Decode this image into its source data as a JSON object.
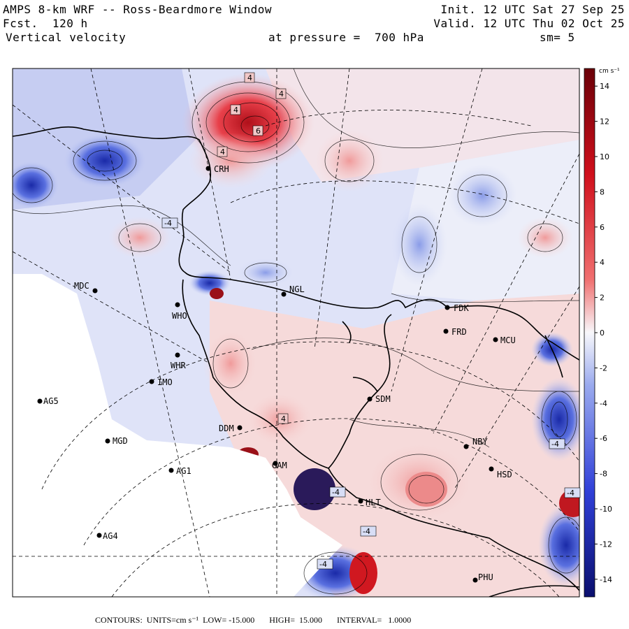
{
  "header": {
    "model": "AMPS 8-km WRF -- Ross-Beardmore Window",
    "forecast": "Fcst.  120 h",
    "field": "Vertical velocity",
    "init": "Init. 12 UTC Sat 27 Sep 25",
    "valid": "Valid. 12 UTC Thu 02 Oct 25",
    "pressure": "at pressure =  700 hPa",
    "smoothing": "sm= 5"
  },
  "colorbar": {
    "units": "cm s⁻¹",
    "ticks": [
      "14",
      "12",
      "10",
      "8",
      "6",
      "4",
      "2",
      "0",
      "-2",
      "-4",
      "-6",
      "-8",
      "-10",
      "-12",
      "-14"
    ],
    "min": -15,
    "max": 15,
    "colors": {
      "neg_max": "#0a0f6e",
      "neg_mid": "#3a50d8",
      "neg_low": "#aab6ee",
      "zero": "#f4f4fa",
      "pos_low": "#f2b8b8",
      "pos_mid": "#e0303a",
      "pos_max": "#6a0008"
    }
  },
  "stations": [
    {
      "id": "MDC",
      "label": "MDC"
    },
    {
      "id": "NGL",
      "label": "NGL"
    },
    {
      "id": "FDK",
      "label": "FDK"
    },
    {
      "id": "FRD",
      "label": "FRD"
    },
    {
      "id": "MCU",
      "label": "MCU"
    },
    {
      "id": "WHO",
      "label": "WHO"
    },
    {
      "id": "IMO",
      "label": "IMO"
    },
    {
      "id": "WHR",
      "label": "WHR"
    },
    {
      "id": "SDM",
      "label": "SDM"
    },
    {
      "id": "AG5",
      "label": "AG5"
    },
    {
      "id": "MGD",
      "label": "MGD"
    },
    {
      "id": "DDM",
      "label": "DDM"
    },
    {
      "id": "NBY",
      "label": "NBY"
    },
    {
      "id": "AG1",
      "label": "AG1"
    },
    {
      "id": "GAM",
      "label": "GAM"
    },
    {
      "id": "HSD",
      "label": "HSD"
    },
    {
      "id": "HLT",
      "label": "HLT"
    },
    {
      "id": "AG4",
      "label": "AG4"
    },
    {
      "id": "CRH",
      "label": "CRH"
    },
    {
      "id": "PHU",
      "label": "PHU"
    }
  ],
  "contour_labels": [
    "4",
    "4",
    "4",
    "6",
    "4",
    "-4",
    "4",
    "-4",
    "-4",
    "-4",
    "-4",
    "-4"
  ],
  "footer": {
    "contours": "CONTOURS:  UNITS=cm s⁻¹  LOW= -15.000       HIGH=  15.000       INTERVAL=   1.0000"
  }
}
